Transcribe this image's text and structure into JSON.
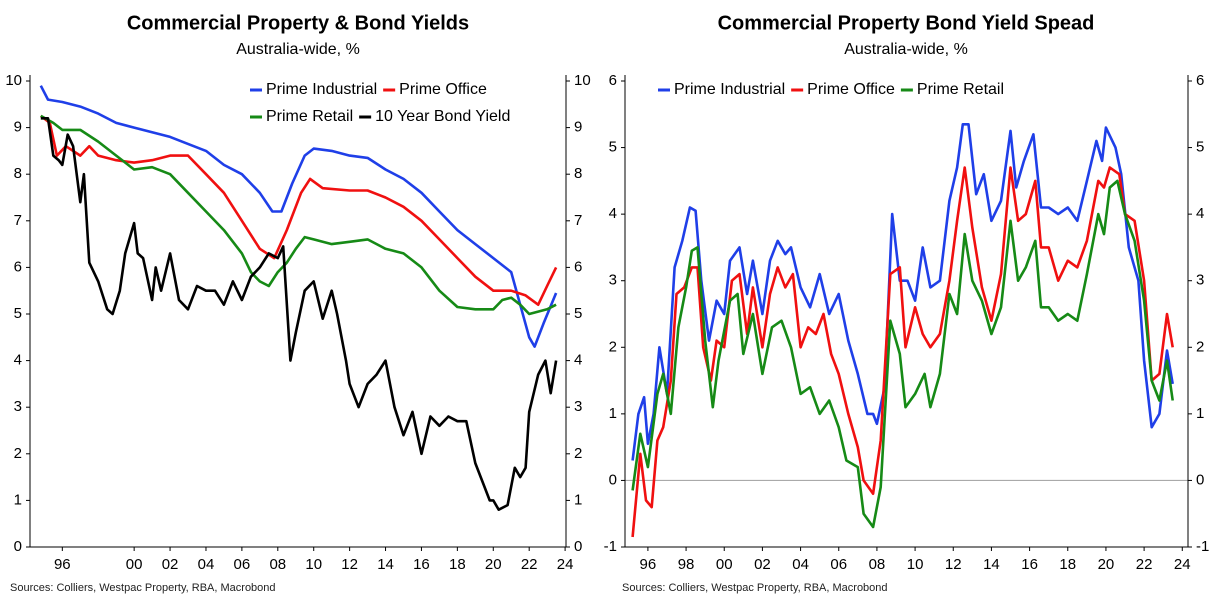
{
  "chart_data": [
    {
      "type": "line",
      "title": "Commercial Property & Bond Yields",
      "subtitle": "Australia-wide, %",
      "source": "Sources: Colliers, Westpac Property, RBA, Macrobond",
      "xlim": [
        1994.2,
        2024.05
      ],
      "xticks": [
        {
          "value": 1996,
          "label": "96"
        },
        {
          "value": 2000,
          "label": "00"
        },
        {
          "value": 2002,
          "label": "02"
        },
        {
          "value": 2004,
          "label": "04"
        },
        {
          "value": 2006,
          "label": "06"
        },
        {
          "value": 2008,
          "label": "08"
        },
        {
          "value": 2010,
          "label": "10"
        },
        {
          "value": 2012,
          "label": "12"
        },
        {
          "value": 2014,
          "label": "14"
        },
        {
          "value": 2016,
          "label": "16"
        },
        {
          "value": 2018,
          "label": "18"
        },
        {
          "value": 2020,
          "label": "20"
        },
        {
          "value": 2022,
          "label": "22"
        },
        {
          "value": 2024,
          "label": "24"
        }
      ],
      "ylim": [
        0,
        10
      ],
      "yticks": [
        0,
        1,
        2,
        3,
        4,
        5,
        6,
        7,
        8,
        9,
        10
      ],
      "y2lim": [
        0,
        10
      ],
      "y2ticks": [
        0,
        1,
        2,
        3,
        4,
        5,
        6,
        7,
        8,
        9,
        10
      ],
      "legend": "top-right",
      "series": [
        {
          "name": "Prime Industrial",
          "color": "#1f3fe8",
          "x": [
            1994.8,
            1995.2,
            1996,
            1997,
            1998,
            1999,
            2000,
            2001,
            2002,
            2003,
            2004,
            2005,
            2006,
            2007,
            2007.7,
            2008.2,
            2008.8,
            2009.5,
            2010,
            2011,
            2012,
            2013,
            2014,
            2015,
            2016,
            2017,
            2018,
            2019,
            2020,
            2021,
            2021.5,
            2022,
            2022.3,
            2022.8,
            2023.5
          ],
          "values": [
            9.9,
            9.6,
            9.55,
            9.45,
            9.3,
            9.1,
            9.0,
            8.9,
            8.8,
            8.65,
            8.5,
            8.2,
            8.0,
            7.6,
            7.2,
            7.2,
            7.8,
            8.4,
            8.55,
            8.5,
            8.4,
            8.35,
            8.1,
            7.9,
            7.6,
            7.2,
            6.8,
            6.5,
            6.2,
            5.9,
            5.2,
            4.5,
            4.3,
            4.8,
            5.45
          ]
        },
        {
          "name": "Prime Office",
          "color": "#f01010",
          "x": [
            1994.8,
            1995.3,
            1995.7,
            1996.2,
            1997,
            1997.5,
            1998,
            1999,
            2000,
            2001,
            2002,
            2003,
            2004,
            2005,
            2006,
            2007,
            2007.8,
            2008.5,
            2009.3,
            2009.8,
            2010.5,
            2012,
            2013,
            2014,
            2015,
            2016,
            2017,
            2018,
            2019,
            2020,
            2021,
            2021.8,
            2022.5,
            2023,
            2023.5
          ],
          "values": [
            9.25,
            9.1,
            8.4,
            8.6,
            8.4,
            8.6,
            8.4,
            8.3,
            8.25,
            8.3,
            8.4,
            8.4,
            8.0,
            7.6,
            7.0,
            6.4,
            6.2,
            6.8,
            7.6,
            7.9,
            7.7,
            7.65,
            7.65,
            7.5,
            7.3,
            7.0,
            6.6,
            6.2,
            5.8,
            5.5,
            5.5,
            5.4,
            5.2,
            5.6,
            6.0
          ]
        },
        {
          "name": "Prime Retail",
          "color": "#168a16",
          "x": [
            1994.8,
            1995.5,
            1996,
            1997,
            1998,
            1999,
            2000,
            2001,
            2002,
            2003,
            2004,
            2005,
            2006,
            2006.5,
            2007,
            2007.5,
            2008,
            2008.5,
            2009,
            2009.5,
            2010,
            2011,
            2012,
            2013,
            2014,
            2015,
            2016,
            2017,
            2018,
            2019,
            2020,
            2020.5,
            2021,
            2021.5,
            2022,
            2023,
            2023.5
          ],
          "values": [
            9.25,
            9.1,
            8.95,
            8.95,
            8.7,
            8.4,
            8.1,
            8.15,
            8.0,
            7.6,
            7.2,
            6.8,
            6.3,
            5.9,
            5.7,
            5.6,
            5.9,
            6.1,
            6.4,
            6.65,
            6.6,
            6.5,
            6.55,
            6.6,
            6.4,
            6.3,
            6.0,
            5.5,
            5.15,
            5.1,
            5.1,
            5.3,
            5.35,
            5.2,
            5.0,
            5.1,
            5.2
          ]
        },
        {
          "name": "10 Year Bond Yield",
          "color": "#000000",
          "x": [
            1994.8,
            1995.2,
            1995.5,
            1995.8,
            1996,
            1996.3,
            1996.6,
            1997,
            1997.2,
            1997.5,
            1998,
            1998.5,
            1998.8,
            1999.2,
            1999.5,
            2000,
            2000.2,
            2000.5,
            2001,
            2001.2,
            2001.5,
            2002,
            2002.5,
            2003,
            2003.5,
            2004,
            2004.5,
            2005,
            2005.5,
            2006,
            2006.5,
            2007,
            2007.5,
            2008,
            2008.3,
            2008.7,
            2009,
            2009.5,
            2010,
            2010.5,
            2011,
            2011.3,
            2011.8,
            2012,
            2012.5,
            2013,
            2013.5,
            2014,
            2014.5,
            2015,
            2015.5,
            2016,
            2016.5,
            2017,
            2017.5,
            2018,
            2018.5,
            2019,
            2019.5,
            2019.8,
            2020,
            2020.3,
            2020.8,
            2021.2,
            2021.5,
            2021.8,
            2022,
            2022.5,
            2022.9,
            2023.2,
            2023.5
          ],
          "values": [
            9.2,
            9.2,
            8.4,
            8.3,
            8.2,
            8.85,
            8.6,
            7.4,
            8.0,
            6.1,
            5.7,
            5.1,
            5.0,
            5.5,
            6.3,
            6.95,
            6.3,
            6.2,
            5.3,
            6.0,
            5.5,
            6.3,
            5.3,
            5.1,
            5.6,
            5.5,
            5.5,
            5.2,
            5.7,
            5.3,
            5.8,
            6.0,
            6.3,
            6.2,
            6.45,
            4.0,
            4.6,
            5.5,
            5.7,
            4.9,
            5.5,
            5.0,
            4.0,
            3.5,
            3.0,
            3.5,
            3.7,
            4.0,
            3.0,
            2.4,
            2.9,
            2.0,
            2.8,
            2.6,
            2.8,
            2.7,
            2.7,
            1.8,
            1.3,
            1.0,
            1.0,
            0.8,
            0.9,
            1.7,
            1.5,
            1.7,
            2.9,
            3.7,
            4.0,
            3.3,
            4.0
          ]
        }
      ]
    },
    {
      "type": "line",
      "title": "Commercial Property Bond Yield Spead",
      "subtitle": "Australia-wide, %",
      "source": "Sources: Colliers, Westpac Property, RBA, Macrobond",
      "xlim": [
        1994.8,
        2024.3
      ],
      "xticks": [
        {
          "value": 1996,
          "label": "96"
        },
        {
          "value": 1998,
          "label": "98"
        },
        {
          "value": 2000,
          "label": "00"
        },
        {
          "value": 2002,
          "label": "02"
        },
        {
          "value": 2004,
          "label": "04"
        },
        {
          "value": 2006,
          "label": "06"
        },
        {
          "value": 2008,
          "label": "08"
        },
        {
          "value": 2010,
          "label": "10"
        },
        {
          "value": 2012,
          "label": "12"
        },
        {
          "value": 2014,
          "label": "14"
        },
        {
          "value": 2016,
          "label": "16"
        },
        {
          "value": 2018,
          "label": "18"
        },
        {
          "value": 2020,
          "label": "20"
        },
        {
          "value": 2022,
          "label": "22"
        },
        {
          "value": 2024,
          "label": "24"
        }
      ],
      "ylim": [
        -1,
        6
      ],
      "yticks": [
        -1,
        0,
        1,
        2,
        3,
        4,
        5,
        6
      ],
      "y2lim": [
        -1,
        6
      ],
      "y2ticks": [
        -1,
        0,
        1,
        2,
        3,
        4,
        5,
        6
      ],
      "zero_line": true,
      "legend": "top-left",
      "series": [
        {
          "name": "Prime Industrial",
          "color": "#1f3fe8",
          "x": [
            1995.2,
            1995.5,
            1995.8,
            1996,
            1996.3,
            1996.6,
            1997,
            1997.4,
            1997.8,
            1998.2,
            1998.5,
            1998.8,
            1999.2,
            1999.6,
            2000,
            2000.3,
            2000.8,
            2001.2,
            2001.5,
            2002,
            2002.4,
            2002.8,
            2003.2,
            2003.5,
            2004,
            2004.5,
            2005,
            2005.5,
            2006,
            2006.5,
            2007,
            2007.5,
            2007.8,
            2008,
            2008.4,
            2008.8,
            2009.2,
            2009.6,
            2010,
            2010.4,
            2010.8,
            2011.3,
            2011.8,
            2012.2,
            2012.5,
            2012.8,
            2013.2,
            2013.6,
            2014,
            2014.5,
            2015,
            2015.3,
            2015.7,
            2016.2,
            2016.6,
            2017,
            2017.5,
            2018,
            2018.5,
            2019,
            2019.5,
            2019.8,
            2020,
            2020.5,
            2020.8,
            2021.2,
            2021.7,
            2022,
            2022.4,
            2022.8,
            2023.2,
            2023.5
          ],
          "values": [
            0.3,
            1.0,
            1.25,
            0.55,
            1.0,
            2.0,
            1.3,
            3.2,
            3.6,
            4.1,
            4.05,
            3.0,
            2.1,
            2.7,
            2.5,
            3.3,
            3.5,
            2.8,
            3.3,
            2.5,
            3.3,
            3.6,
            3.4,
            3.5,
            2.9,
            2.6,
            3.1,
            2.5,
            2.8,
            2.1,
            1.6,
            1.0,
            1.0,
            0.85,
            1.4,
            4.0,
            3.0,
            3.0,
            2.7,
            3.5,
            2.9,
            3.0,
            4.2,
            4.7,
            5.35,
            5.35,
            4.3,
            4.6,
            3.9,
            4.2,
            5.25,
            4.4,
            4.8,
            5.2,
            4.1,
            4.1,
            4.0,
            4.1,
            3.9,
            4.5,
            5.1,
            4.8,
            5.3,
            5.0,
            4.6,
            3.5,
            3.0,
            1.8,
            0.8,
            1.0,
            1.95,
            1.45
          ]
        },
        {
          "name": "Prime Office",
          "color": "#f01010",
          "x": [
            1995.2,
            1995.6,
            1995.9,
            1996.2,
            1996.5,
            1996.8,
            1997.2,
            1997.5,
            1997.9,
            1998.3,
            1998.6,
            1998.9,
            1999.3,
            1999.6,
            2000,
            2000.4,
            2000.8,
            2001.2,
            2001.5,
            2002,
            2002.4,
            2002.8,
            2003.2,
            2003.6,
            2004,
            2004.4,
            2004.8,
            2005.2,
            2005.6,
            2006,
            2006.5,
            2007,
            2007.3,
            2007.8,
            2008.2,
            2008.7,
            2009.2,
            2009.5,
            2010,
            2010.4,
            2010.8,
            2011.3,
            2011.8,
            2012.2,
            2012.6,
            2013,
            2013.5,
            2014,
            2014.5,
            2015,
            2015.4,
            2015.8,
            2016.3,
            2016.6,
            2017,
            2017.5,
            2018,
            2018.5,
            2019,
            2019.6,
            2019.9,
            2020.2,
            2020.7,
            2021,
            2021.5,
            2022,
            2022.4,
            2022.8,
            2023.2,
            2023.5
          ],
          "values": [
            -0.85,
            0.4,
            -0.3,
            -0.4,
            0.6,
            0.8,
            1.5,
            2.8,
            2.9,
            3.2,
            3.2,
            2.0,
            1.5,
            2.1,
            2.0,
            3.0,
            3.1,
            2.2,
            2.9,
            2.0,
            2.8,
            3.2,
            2.9,
            3.1,
            2.0,
            2.3,
            2.2,
            2.5,
            1.9,
            1.6,
            1.0,
            0.5,
            0.0,
            -0.2,
            0.6,
            3.1,
            3.2,
            2.0,
            2.6,
            2.2,
            2.0,
            2.2,
            3.0,
            3.9,
            4.7,
            3.8,
            2.9,
            2.4,
            3.1,
            4.7,
            3.9,
            4.0,
            4.5,
            3.5,
            3.5,
            3.0,
            3.3,
            3.2,
            3.6,
            4.5,
            4.4,
            4.7,
            4.6,
            4.0,
            3.9,
            3.0,
            1.5,
            1.6,
            2.5,
            2.0
          ]
        },
        {
          "name": "Prime Retail",
          "color": "#168a16",
          "x": [
            1995.2,
            1995.6,
            1996,
            1996.5,
            1996.8,
            1997.2,
            1997.6,
            1998,
            1998.3,
            1998.6,
            1999,
            1999.4,
            1999.7,
            2000.3,
            2000.7,
            2001,
            2001.5,
            2002,
            2002.5,
            2003,
            2003.5,
            2004,
            2004.5,
            2005,
            2005.5,
            2006,
            2006.4,
            2007,
            2007.3,
            2007.8,
            2008.2,
            2008.7,
            2009.2,
            2009.5,
            2010,
            2010.5,
            2010.8,
            2011.3,
            2011.8,
            2012.2,
            2012.6,
            2013,
            2013.5,
            2014,
            2014.5,
            2015,
            2015.4,
            2015.8,
            2016.3,
            2016.6,
            2017,
            2017.5,
            2018,
            2018.5,
            2019,
            2019.6,
            2019.9,
            2020.2,
            2020.6,
            2021,
            2021.5,
            2022,
            2022.4,
            2022.8,
            2023.2,
            2023.5
          ],
          "values": [
            -0.15,
            0.7,
            0.2,
            1.3,
            1.6,
            1.0,
            2.3,
            2.9,
            3.45,
            3.5,
            2.1,
            1.1,
            1.8,
            2.7,
            2.8,
            1.9,
            2.5,
            1.6,
            2.3,
            2.4,
            2.0,
            1.3,
            1.4,
            1.0,
            1.2,
            0.8,
            0.3,
            0.2,
            -0.5,
            -0.7,
            -0.1,
            2.4,
            1.9,
            1.1,
            1.3,
            1.6,
            1.1,
            1.6,
            2.8,
            2.5,
            3.7,
            3.0,
            2.7,
            2.2,
            2.6,
            3.9,
            3.0,
            3.2,
            3.6,
            2.6,
            2.6,
            2.4,
            2.5,
            2.4,
            3.1,
            4.0,
            3.7,
            4.4,
            4.5,
            4.0,
            3.6,
            2.7,
            1.5,
            1.2,
            1.8,
            1.2
          ]
        }
      ]
    }
  ]
}
